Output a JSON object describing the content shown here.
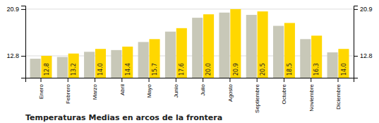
{
  "chart_data": {
    "type": "bar",
    "title": "Temperaturas Medias en arcos de la frontera",
    "categories": [
      "Enero",
      "Febrero",
      "Marzo",
      "Abril",
      "Mayo",
      "Junio",
      "Julio",
      "Agosto",
      "Septiembre",
      "Octubre",
      "Noviembre",
      "Diciembre"
    ],
    "series": [
      {
        "color": "#C8C8B8",
        "values": [
          12.3,
          12.6,
          13.5,
          13.8,
          15.2,
          17.0,
          19.4,
          20.3,
          19.9,
          18.0,
          15.7,
          13.4
        ]
      },
      {
        "color": "#FFD700",
        "values": [
          12.8,
          13.2,
          14.0,
          14.4,
          15.7,
          17.6,
          20.0,
          20.9,
          20.5,
          18.5,
          16.3,
          14.0
        ],
        "data_labels": true,
        "value_labels": [
          "12.8",
          "13.2",
          "14.0",
          "14.4",
          "15.7",
          "17.6",
          "20.0",
          "20.9",
          "20.5",
          "18.5",
          "16.3",
          "14.0"
        ]
      }
    ],
    "ylim": [
      9.0,
      21.5
    ],
    "yticks": [
      12.8,
      20.9
    ],
    "y2lim": [
      9.0,
      21.5
    ],
    "y2ticks": [
      12.8,
      20.9
    ],
    "grid": true
  }
}
